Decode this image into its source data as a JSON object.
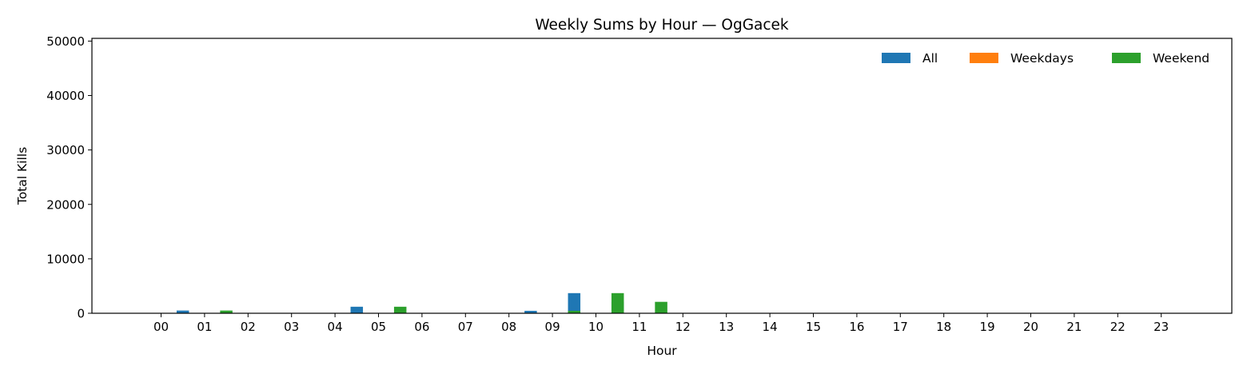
{
  "chart_data": {
    "type": "bar",
    "title": "Weekly Sums by Hour — OgGacek",
    "xlabel": "Hour",
    "ylabel": "Total Kills",
    "ylim": [
      0,
      50500
    ],
    "yticks": [
      0,
      10000,
      20000,
      30000,
      40000,
      50000
    ],
    "categories": [
      "00",
      "01",
      "02",
      "03",
      "04",
      "05",
      "06",
      "07",
      "08",
      "09",
      "10",
      "11",
      "12",
      "13",
      "14",
      "15",
      "16",
      "17",
      "18",
      "19",
      "20",
      "21",
      "22",
      "23"
    ],
    "series": [
      {
        "name": "All",
        "color": "#1f77b4",
        "values": [
          0,
          500,
          0,
          0,
          0,
          1200,
          0,
          0,
          0,
          450,
          3700,
          2100,
          0,
          0,
          0,
          0,
          0,
          0,
          0,
          0,
          0,
          0,
          0,
          0
        ]
      },
      {
        "name": "Weekdays",
        "color": "#ff7f0e",
        "values": [
          0,
          0,
          0,
          0,
          0,
          0,
          0,
          0,
          0,
          0,
          0,
          0,
          0,
          0,
          0,
          0,
          0,
          0,
          0,
          0,
          0,
          0,
          0,
          0
        ]
      },
      {
        "name": "Weekend",
        "color": "#2ca02c",
        "values": [
          0,
          500,
          0,
          0,
          0,
          1200,
          0,
          0,
          0,
          450,
          3700,
          2100,
          0,
          0,
          0,
          0,
          0,
          0,
          0,
          0,
          0,
          0,
          0,
          0
        ]
      }
    ],
    "legend_position": "top-right",
    "grid": false
  }
}
